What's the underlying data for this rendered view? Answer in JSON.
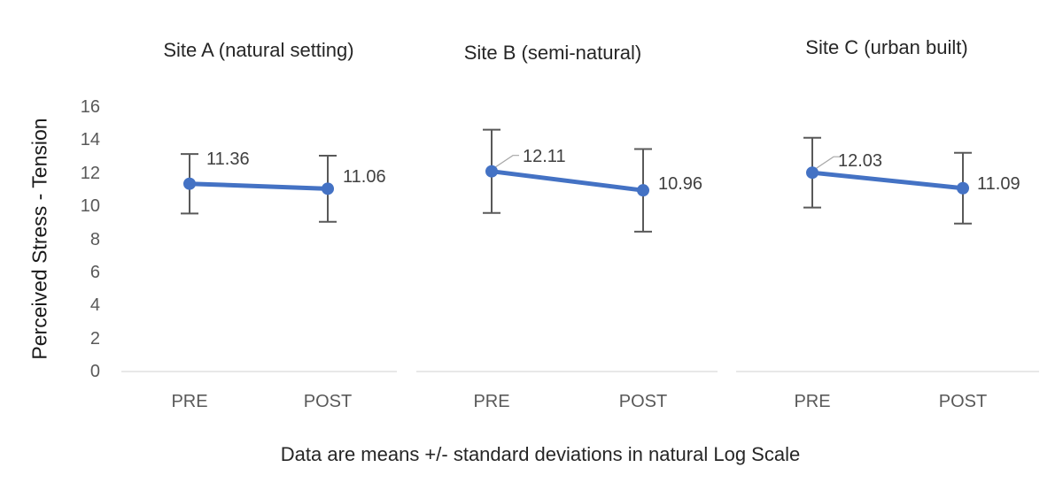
{
  "chart_data": {
    "type": "line",
    "categories": [
      "PRE",
      "POST"
    ],
    "ylabel": "Perceived Stress - Tension",
    "ylim": [
      0,
      16
    ],
    "y_ticks": [
      0,
      2,
      4,
      6,
      8,
      10,
      12,
      14,
      16
    ],
    "grid": false,
    "legend": "none",
    "error_bars": "standard deviation",
    "caption": "Data are means +/- standard deviations in natural Log Scale",
    "colors": {
      "series": "#4472C4",
      "error_bar": "#595959",
      "axis_line": "#D9D9D9",
      "tick_label": "#595959",
      "data_label": "#404040",
      "leader_line": "#A6A6A6"
    },
    "panels": [
      {
        "title": "Site A (natural setting)",
        "means": [
          11.36,
          11.06
        ],
        "sd": [
          1.8,
          2.0
        ],
        "data_labels": [
          "11.36",
          "11.06"
        ]
      },
      {
        "title": "Site B (semi-natural)",
        "means": [
          12.11,
          10.96
        ],
        "sd": [
          2.52,
          2.5
        ],
        "data_labels": [
          "12.11",
          "10.96"
        ]
      },
      {
        "title": "Site C (urban built)",
        "means": [
          12.03,
          11.09
        ],
        "sd": [
          2.11,
          2.14
        ],
        "data_labels": [
          "12.03",
          "11.09"
        ]
      }
    ]
  }
}
